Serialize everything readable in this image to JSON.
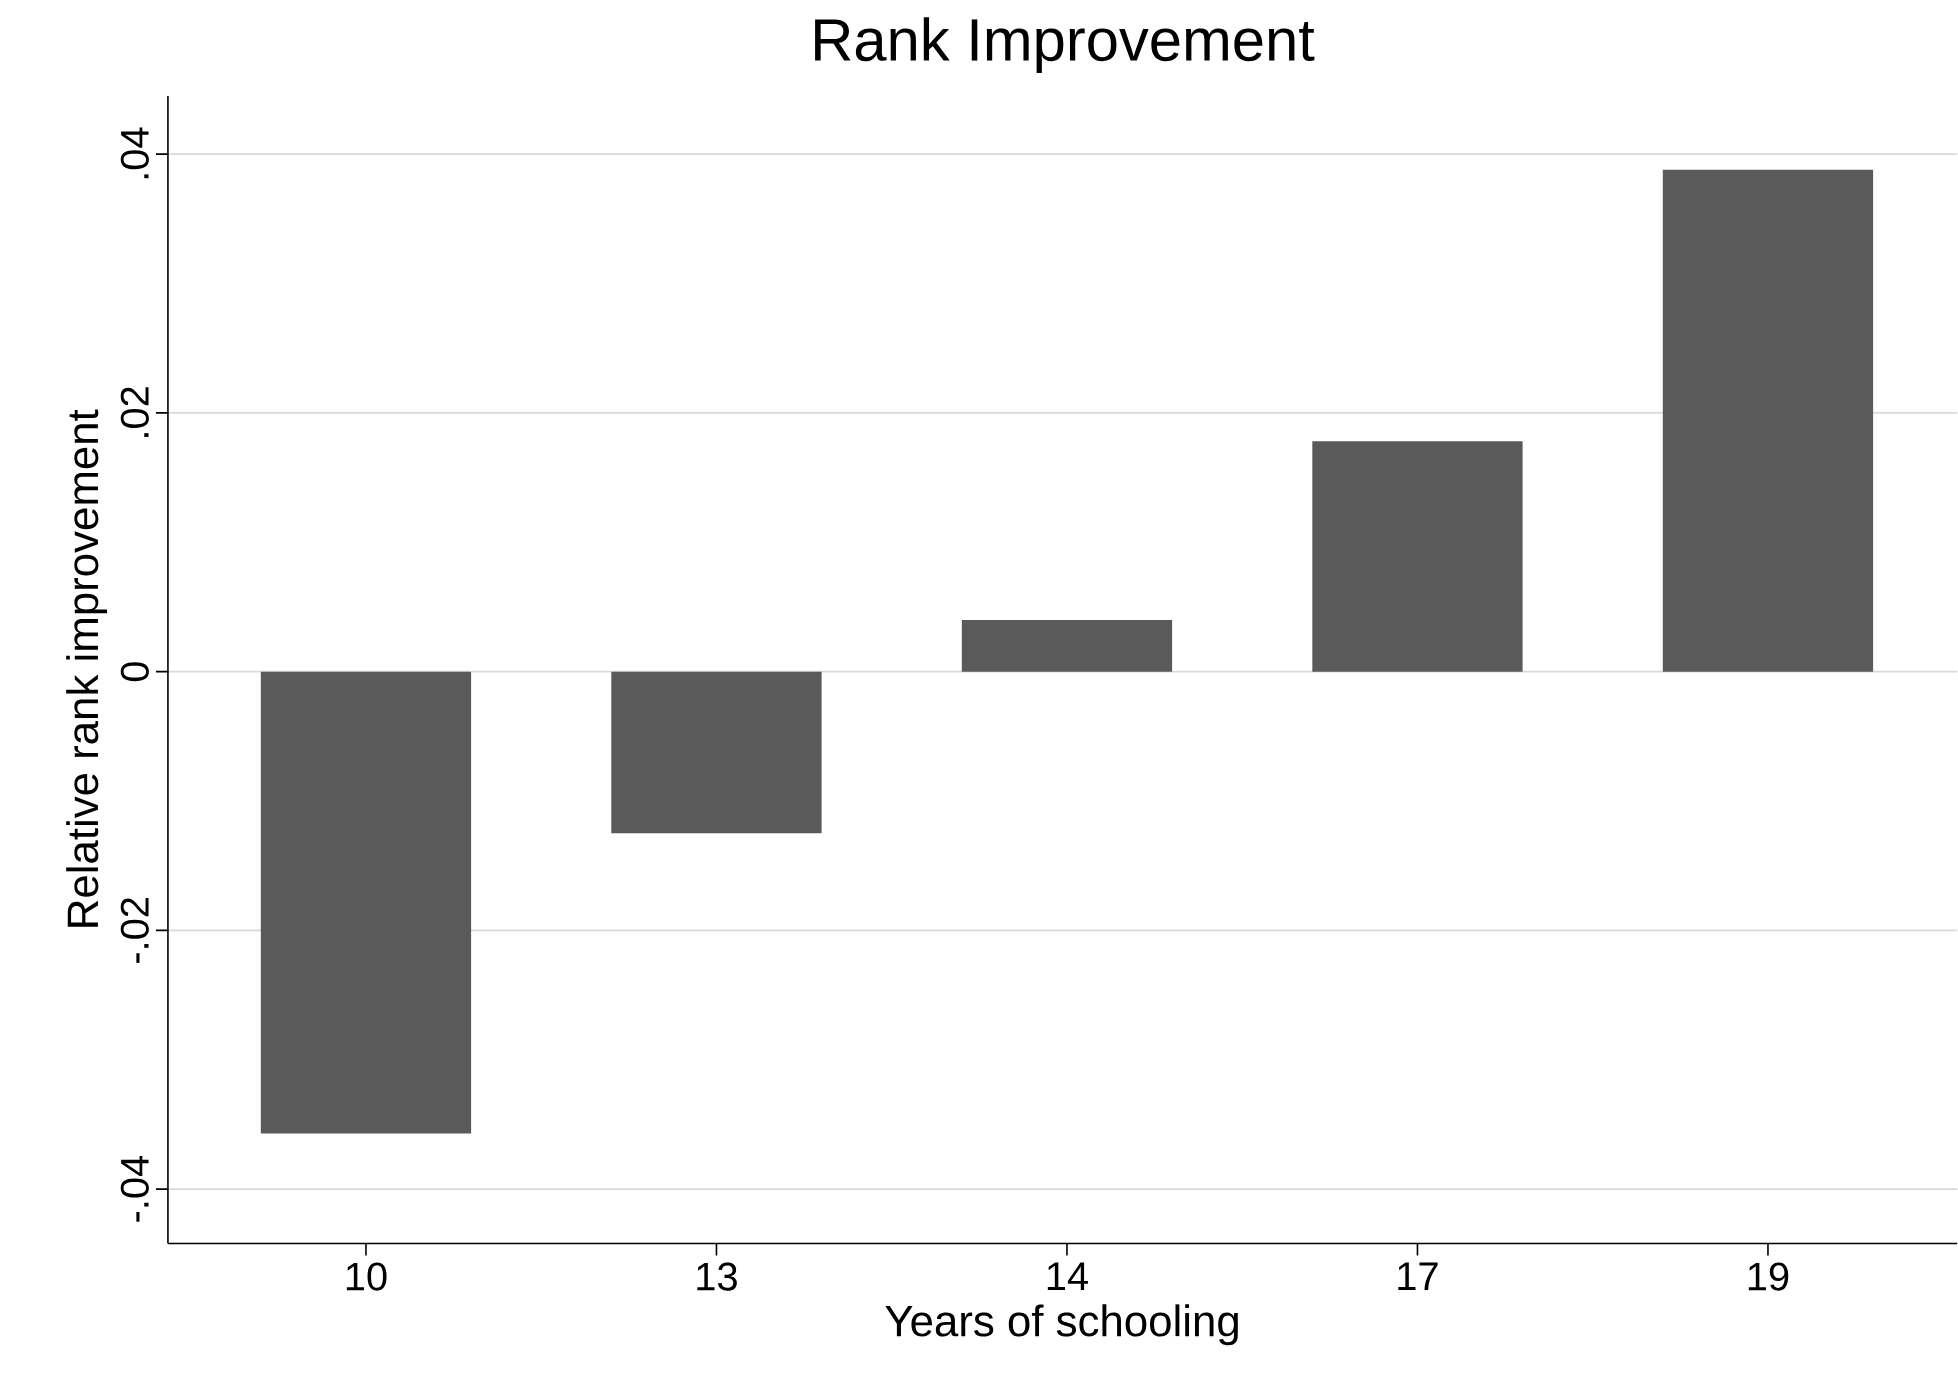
{
  "chart_data": {
    "type": "bar",
    "title": "Rank Improvement",
    "xlabel": "Years of schooling",
    "ylabel": "Relative rank improvement",
    "categories": [
      "10",
      "13",
      "14",
      "17",
      "19"
    ],
    "values": [
      -0.0357,
      -0.0125,
      0.004,
      0.0178,
      0.0388
    ],
    "color": "#5a5a5a",
    "ylim": [
      -0.0442,
      0.0445
    ],
    "yticks": [
      {
        "value": -0.04,
        "label": "-.04"
      },
      {
        "value": -0.02,
        "label": "-.02"
      },
      {
        "value": 0,
        "label": "0"
      },
      {
        "value": 0.02,
        "label": ".02"
      },
      {
        "value": 0.04,
        "label": ".04"
      }
    ],
    "grid": "y"
  }
}
